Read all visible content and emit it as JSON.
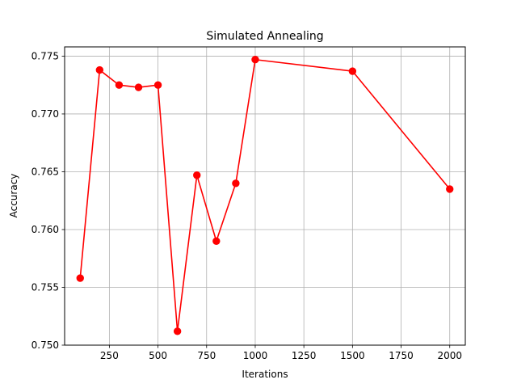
{
  "chart_data": {
    "type": "line",
    "title": "Simulated Annealing",
    "xlabel": "Iterations",
    "ylabel": "Accuracy",
    "x": [
      100,
      200,
      300,
      400,
      500,
      600,
      700,
      800,
      900,
      1000,
      1500,
      2000
    ],
    "series": [
      {
        "values": [
          0.7558,
          0.7738,
          0.7725,
          0.7723,
          0.7725,
          0.7512,
          0.7647,
          0.759,
          0.764,
          0.7747,
          0.7737,
          0.7635
        ],
        "color": "#ff0000",
        "marker": "circle"
      }
    ],
    "xlim": [
      20,
      2080
    ],
    "ylim": [
      0.75,
      0.7758
    ],
    "xticks": [
      250,
      500,
      750,
      1000,
      1250,
      1500,
      1750,
      2000
    ],
    "yticks": [
      0.75,
      0.755,
      0.76,
      0.765,
      0.77,
      0.775
    ],
    "xtick_labels": [
      "250",
      "500",
      "750",
      "1000",
      "1250",
      "1500",
      "1750",
      "2000"
    ],
    "ytick_labels": [
      "0.750",
      "0.755",
      "0.760",
      "0.765",
      "0.770",
      "0.775"
    ],
    "grid": true,
    "grid_color": "#b0b0b0",
    "legend": "none"
  }
}
